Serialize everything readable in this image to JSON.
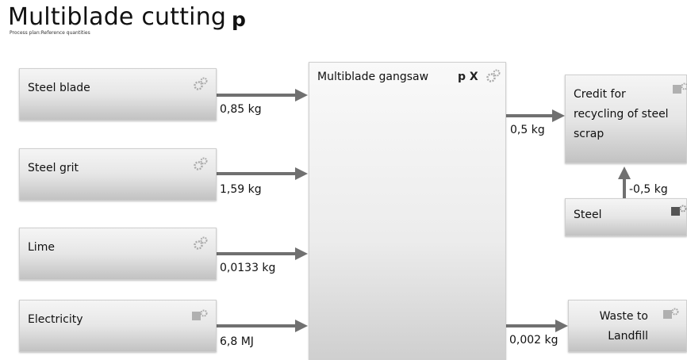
{
  "header": {
    "title": "Multiblade cutting",
    "subtitle": "Process plan:Reference quantities",
    "plan_symbol": "p"
  },
  "main_process": {
    "label": "Multiblade gangsaw",
    "flags": "p X",
    "icon": "gear-icon"
  },
  "inputs": [
    {
      "label": "Steel blade",
      "quantity": "0,85 kg",
      "icon": "gear-icon"
    },
    {
      "label": "Steel grit",
      "quantity": "1,59 kg",
      "icon": "gear-icon"
    },
    {
      "label": "Lime",
      "quantity": "0,0133 kg",
      "icon": "gear-icon"
    },
    {
      "label": "Electricity",
      "quantity": "6,8 MJ",
      "icon": "square-gear-icon"
    }
  ],
  "outputs": [
    {
      "label": "Credit for recycling of steel scrap",
      "quantity": "0,5 kg",
      "icon": "square-gear-icon"
    },
    {
      "label": "Waste to Landfill",
      "quantity": "0,002 kg",
      "icon": "square-gear-icon"
    }
  ],
  "secondary": [
    {
      "label": "Steel",
      "quantity": "-0,5 kg",
      "icon": "square-gear-icon"
    }
  ],
  "colors": {
    "arrow": "#707070",
    "box_top": "#f5f5f5",
    "box_bottom": "#c2c2c2"
  }
}
